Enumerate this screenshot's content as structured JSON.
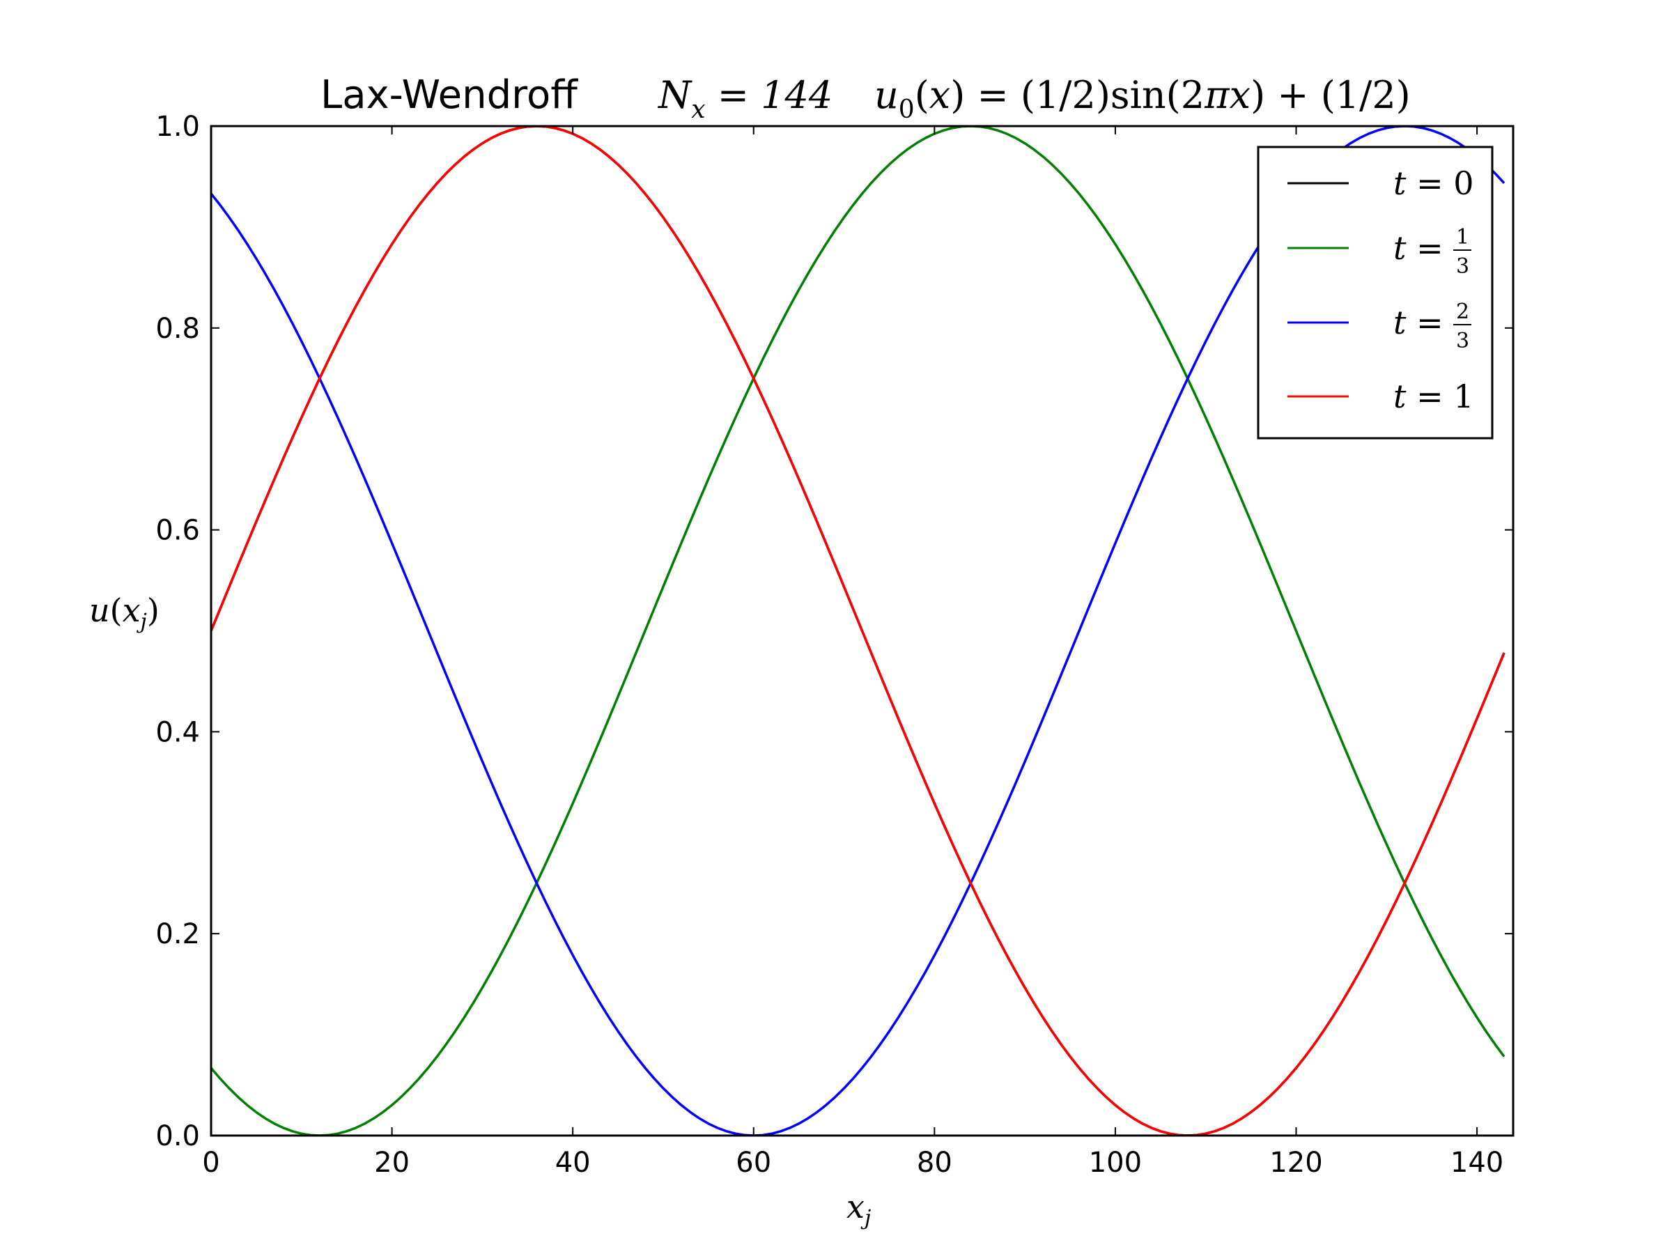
{
  "chart_data": {
    "type": "line",
    "title": {
      "method": "Lax-Wendroff",
      "grid": "N_x = 144",
      "initial": "u_0(x) = (1/2)sin(2πx) + (1/2)"
    },
    "xlabel": "x_j",
    "ylabel": "u(x_j)",
    "xlim": [
      0,
      144
    ],
    "ylim": [
      0.0,
      1.0
    ],
    "x_ticks": [
      "0",
      "20",
      "40",
      "60",
      "80",
      "100",
      "120",
      "140"
    ],
    "y_ticks": [
      "0.0",
      "0.2",
      "0.4",
      "0.6",
      "0.8",
      "1.0"
    ],
    "grid": false,
    "legend_position": "top-right",
    "n_points": 144,
    "formula": "u = 0.5*sin(2*pi*(j/144 - t)) + 0.5",
    "series": [
      {
        "name": "t = 0",
        "t": 0,
        "color": "#000000"
      },
      {
        "name": "t = 1/3",
        "t": 0.3333,
        "color": "#008000"
      },
      {
        "name": "t = 2/3",
        "t": 0.6667,
        "color": "#0000ff"
      },
      {
        "name": "t = 1",
        "t": 1.0,
        "color": "#ff0000"
      }
    ]
  }
}
